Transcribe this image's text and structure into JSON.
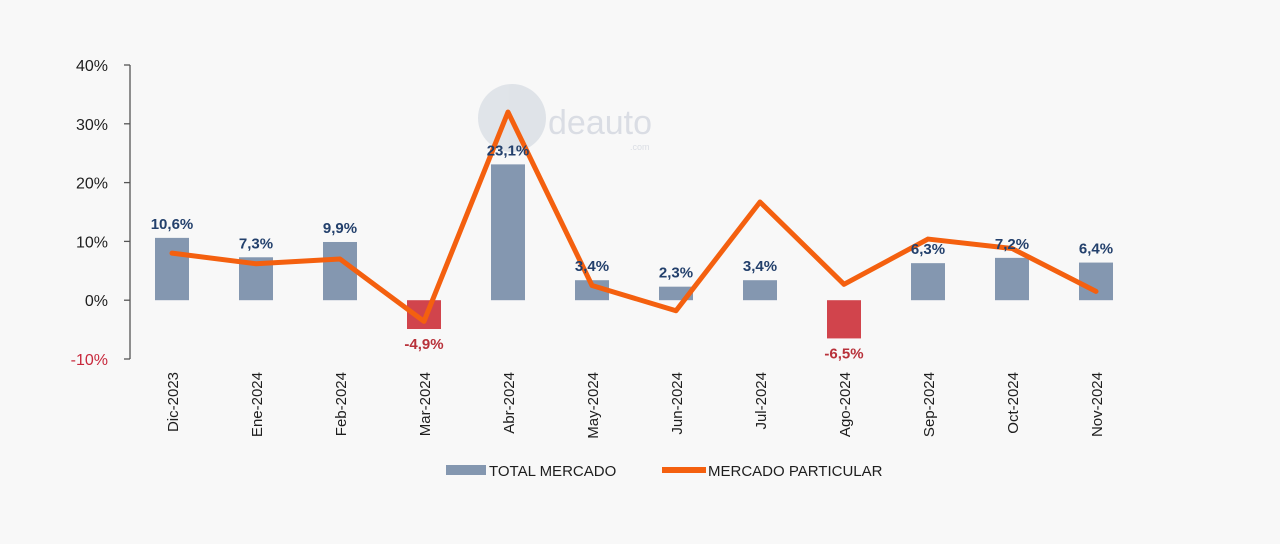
{
  "watermark": {
    "brand": "deauto",
    "sub": ".com"
  },
  "chart_data": {
    "type": "bar",
    "categories": [
      "Dic-2023",
      "Ene-2024",
      "Feb-2024",
      "Mar-2024",
      "Abr-2024",
      "May-2024",
      "Jun-2024",
      "Jul-2024",
      "Ago-2024",
      "Sep-2024",
      "Oct-2024",
      "Nov-2024"
    ],
    "ylim": [
      -10,
      40
    ],
    "yticks": [
      40,
      30,
      20,
      10,
      0,
      -10
    ],
    "ytick_labels": [
      "40%",
      "30%",
      "20%",
      "10%",
      "0%",
      "-10%"
    ],
    "series": [
      {
        "name": "TOTAL MERCADO",
        "type": "bar",
        "values": [
          10.6,
          7.3,
          9.9,
          -4.9,
          23.1,
          3.4,
          2.3,
          3.4,
          -6.5,
          6.3,
          7.2,
          6.4
        ],
        "labels": [
          "10,6%",
          "7,3%",
          "9,9%",
          "-4,9%",
          "23,1%",
          "3,4%",
          "2,3%",
          "3,4%",
          "-6,5%",
          "6,3%",
          "7,2%",
          "6,4%"
        ],
        "color": "#8497b0",
        "negative_color": "#d1444c"
      },
      {
        "name": "MERCADO PARTICULAR",
        "type": "line",
        "values": [
          8.0,
          6.2,
          7.0,
          -3.6,
          32.0,
          2.5,
          -1.8,
          16.7,
          2.7,
          10.4,
          8.8,
          1.5
        ],
        "color": "#f4600f"
      }
    ],
    "legend": "bottom",
    "grid": false
  }
}
